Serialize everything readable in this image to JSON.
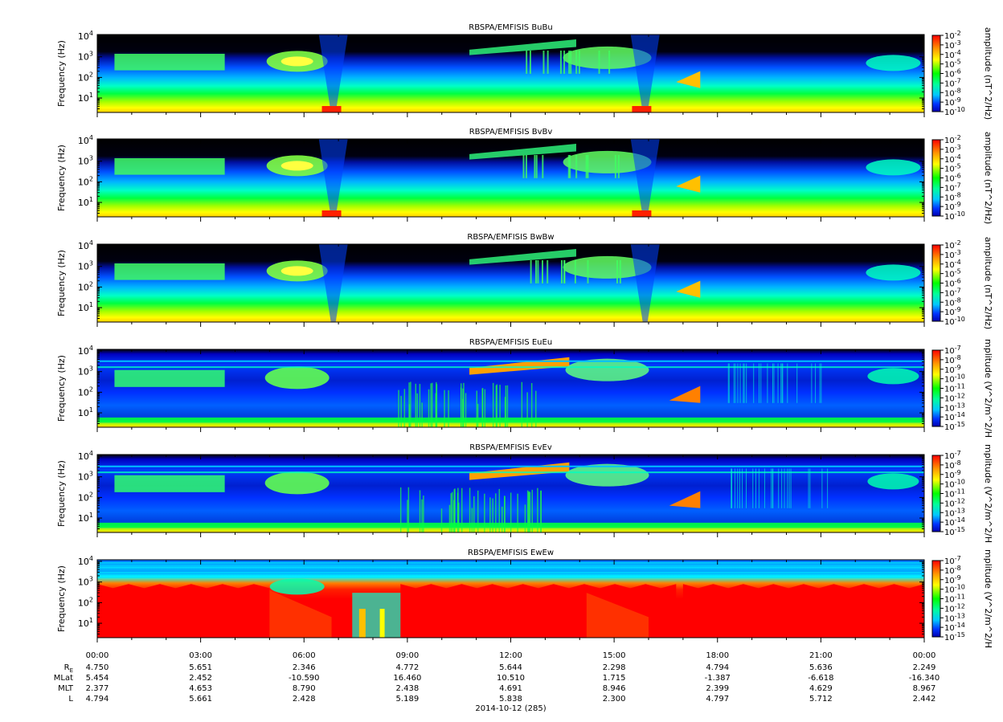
{
  "chart_data": [
    {
      "type": "heatmap",
      "title": "RBSPA/EMFISIS  BuBu",
      "ylabel": "Frequency (Hz)",
      "yscale": "log",
      "ylim": [
        2,
        12000
      ],
      "yticks": [
        {
          "m": "10",
          "e": "1"
        },
        {
          "m": "10",
          "e": "2"
        },
        {
          "m": "10",
          "e": "3"
        },
        {
          "m": "10",
          "e": "4"
        }
      ],
      "colorbar": {
        "label": "amplitude (nT^2/Hz)",
        "scale": "log",
        "ticks": [
          "-2",
          "-3",
          "-4",
          "-5",
          "-6",
          "-7",
          "-8",
          "-9",
          "-10"
        ]
      },
      "palette": "magnetic"
    },
    {
      "type": "heatmap",
      "title": "RBSPA/EMFISIS  BvBv",
      "ylabel": "Frequency (Hz)",
      "yscale": "log",
      "ylim": [
        2,
        12000
      ],
      "yticks": [
        {
          "m": "10",
          "e": "1"
        },
        {
          "m": "10",
          "e": "2"
        },
        {
          "m": "10",
          "e": "3"
        },
        {
          "m": "10",
          "e": "4"
        }
      ],
      "colorbar": {
        "label": "amplitude (nT^2/Hz)",
        "scale": "log",
        "ticks": [
          "-2",
          "-3",
          "-4",
          "-5",
          "-6",
          "-7",
          "-8",
          "-9",
          "-10"
        ]
      },
      "palette": "magnetic"
    },
    {
      "type": "heatmap",
      "title": "RBSPA/EMFISIS  BwBw",
      "ylabel": "Frequency (Hz)",
      "yscale": "log",
      "ylim": [
        2,
        12000
      ],
      "yticks": [
        {
          "m": "10",
          "e": "1"
        },
        {
          "m": "10",
          "e": "2"
        },
        {
          "m": "10",
          "e": "3"
        },
        {
          "m": "10",
          "e": "4"
        }
      ],
      "colorbar": {
        "label": "amplitude (nT^2/Hz)",
        "scale": "log",
        "ticks": [
          "-2",
          "-3",
          "-4",
          "-5",
          "-6",
          "-7",
          "-8",
          "-9",
          "-10"
        ]
      },
      "palette": "magnetic"
    },
    {
      "type": "heatmap",
      "title": "RBSPA/EMFISIS  EuEu",
      "ylabel": "Frequency (Hz)",
      "yscale": "log",
      "ylim": [
        2,
        12000
      ],
      "yticks": [
        {
          "m": "10",
          "e": "1"
        },
        {
          "m": "10",
          "e": "2"
        },
        {
          "m": "10",
          "e": "3"
        },
        {
          "m": "10",
          "e": "4"
        }
      ],
      "colorbar": {
        "label": "mplitude (V^2/m^2/H",
        "scale": "log",
        "ticks": [
          "-7",
          "-8",
          "-9",
          "-10",
          "-11",
          "-12",
          "-13",
          "-14",
          "-15"
        ]
      },
      "palette": "electric"
    },
    {
      "type": "heatmap",
      "title": "RBSPA/EMFISIS  EvEv",
      "ylabel": "Frequency (Hz)",
      "yscale": "log",
      "ylim": [
        2,
        12000
      ],
      "yticks": [
        {
          "m": "10",
          "e": "1"
        },
        {
          "m": "10",
          "e": "2"
        },
        {
          "m": "10",
          "e": "3"
        },
        {
          "m": "10",
          "e": "4"
        }
      ],
      "colorbar": {
        "label": "mplitude (V^2/m^2/H",
        "scale": "log",
        "ticks": [
          "-7",
          "-8",
          "-9",
          "-10",
          "-11",
          "-12",
          "-13",
          "-14",
          "-15"
        ]
      },
      "palette": "electric"
    },
    {
      "type": "heatmap",
      "title": "RBSPA/EMFISIS  EwEw",
      "ylabel": "Frequency (Hz)",
      "yscale": "log",
      "ylim": [
        2,
        12000
      ],
      "yticks": [
        {
          "m": "10",
          "e": "1"
        },
        {
          "m": "10",
          "e": "2"
        },
        {
          "m": "10",
          "e": "3"
        },
        {
          "m": "10",
          "e": "4"
        }
      ],
      "colorbar": {
        "label": "mplitude (V^2/m^2/H",
        "scale": "log",
        "ticks": [
          "-7",
          "-8",
          "-9",
          "-10",
          "-11",
          "-12",
          "-13",
          "-14",
          "-15"
        ]
      },
      "palette": "ew"
    }
  ],
  "x_axis": {
    "ticks": [
      "00:00",
      "03:00",
      "06:00",
      "09:00",
      "12:00",
      "15:00",
      "18:00",
      "21:00",
      "00:00"
    ],
    "date_label": "2014-10-12 (285)"
  },
  "ephemeris": {
    "rows": [
      {
        "label_main": "R",
        "label_sub": "E",
        "values": [
          "4.750",
          "5.651",
          "2.346",
          "4.772",
          "5.644",
          "2.298",
          "4.794",
          "5.636",
          "2.249"
        ]
      },
      {
        "label_main": "MLat",
        "label_sub": "",
        "values": [
          "5.454",
          "2.452",
          "-10.590",
          "16.460",
          "10.510",
          "1.715",
          "-1.387",
          "-6.618",
          "-16.340"
        ]
      },
      {
        "label_main": "MLT",
        "label_sub": "",
        "values": [
          "2.377",
          "4.653",
          "8.790",
          "2.438",
          "4.691",
          "8.946",
          "2.399",
          "4.629",
          "8.967"
        ]
      },
      {
        "label_main": "L",
        "label_sub": "",
        "values": [
          "4.794",
          "5.661",
          "2.428",
          "5.189",
          "5.838",
          "2.300",
          "4.797",
          "5.712",
          "2.442"
        ]
      }
    ]
  }
}
